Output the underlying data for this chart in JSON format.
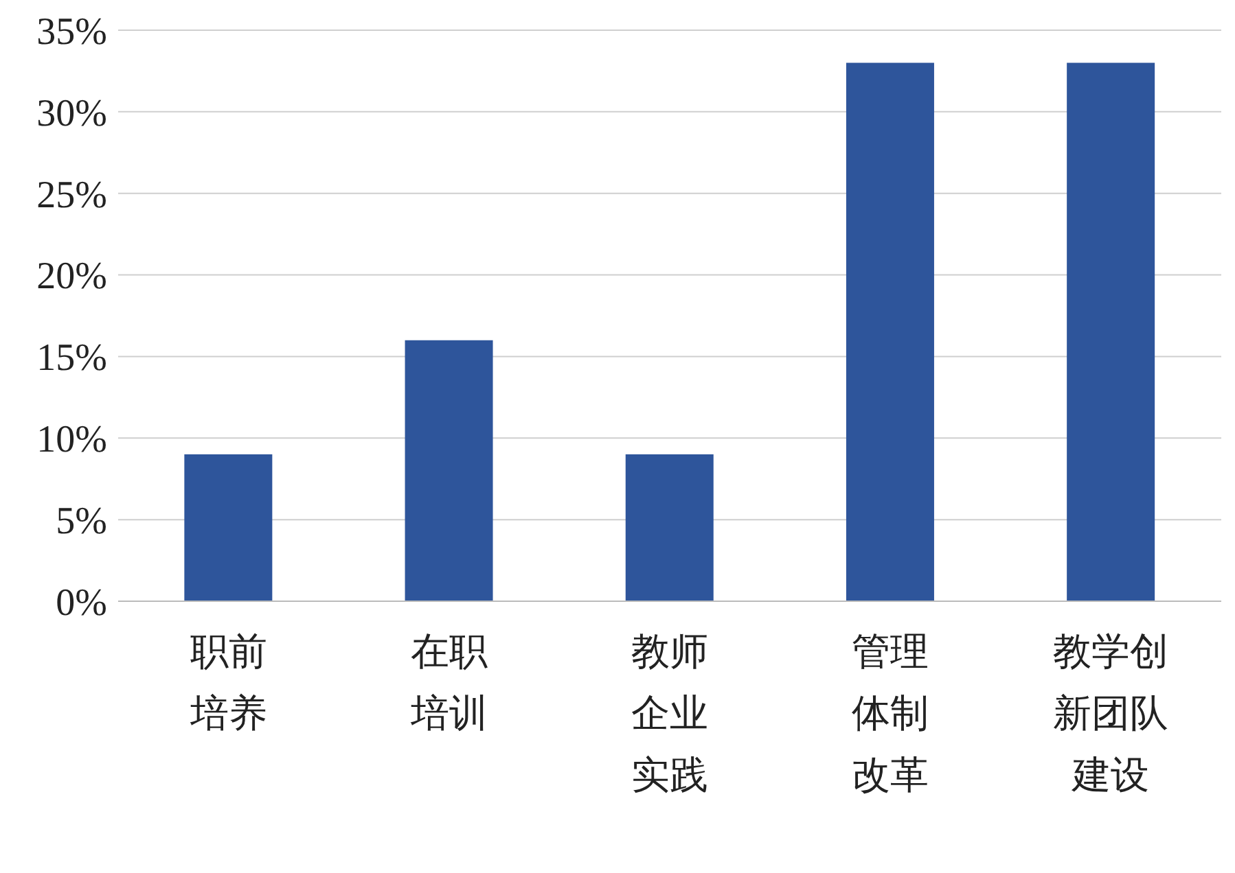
{
  "chart_data": {
    "type": "bar",
    "categories": [
      "职前培养",
      "在职培训",
      "教师企业实践",
      "管理体制改革",
      "教学创新团队建设"
    ],
    "values": [
      9,
      16,
      9,
      33,
      33
    ],
    "color": "#2e559b",
    "ylim": [
      0,
      35
    ],
    "yticks": [
      {
        "value": 0,
        "label": "0%"
      },
      {
        "value": 5,
        "label": "5%"
      },
      {
        "value": 10,
        "label": "10%"
      },
      {
        "value": 15,
        "label": "15%"
      },
      {
        "value": 20,
        "label": "20%"
      },
      {
        "value": 25,
        "label": "25%"
      },
      {
        "value": 30,
        "label": "30%"
      },
      {
        "value": 35,
        "label": "35%"
      }
    ],
    "grid": "y"
  }
}
